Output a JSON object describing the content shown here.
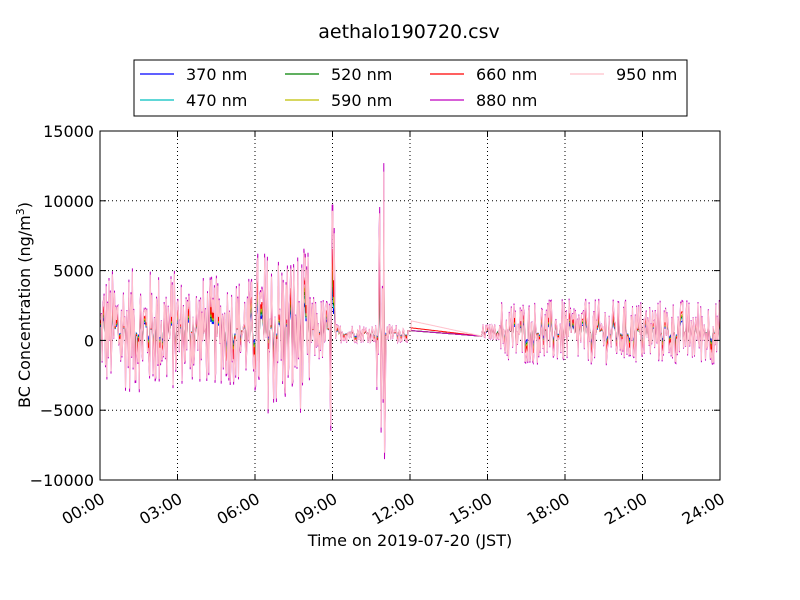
{
  "chart_data": {
    "type": "line",
    "title": "aethalo190720.csv",
    "xlabel": "Time on 2019-07-20 (JST)",
    "ylabel_main": "BC Concentration (ng/m",
    "ylabel_sup": "3",
    "ylabel_close": ")",
    "xlim": [
      "00:00",
      "24:00"
    ],
    "ylim": [
      -10000,
      15000
    ],
    "x_ticks": [
      "00:00",
      "03:00",
      "06:00",
      "09:00",
      "12:00",
      "15:00",
      "18:00",
      "21:00",
      "24:00"
    ],
    "y_ticks": [
      "−10000",
      "−5000",
      "0",
      "5000",
      "10000",
      "15000"
    ],
    "grid": true,
    "legend_position": "top-center",
    "series": [
      {
        "name": "370 nm",
        "color": "#0000ff"
      },
      {
        "name": "470 nm",
        "color": "#00bfbf"
      },
      {
        "name": "520 nm",
        "color": "#008000"
      },
      {
        "name": "590 nm",
        "color": "#bfbf00"
      },
      {
        "name": "660 nm",
        "color": "#ff0000"
      },
      {
        "name": "880 nm",
        "color": "#bf00bf"
      },
      {
        "name": "950 nm",
        "color": "#ffc0cb"
      }
    ],
    "envelope_note_values": {
      "peaks": [
        {
          "time": "09:00",
          "value": 9700
        },
        {
          "time": "11:00",
          "value": 12700
        },
        {
          "time": "11:00",
          "value": -8500
        },
        {
          "time": "09:00",
          "value": -7700
        }
      ]
    }
  }
}
